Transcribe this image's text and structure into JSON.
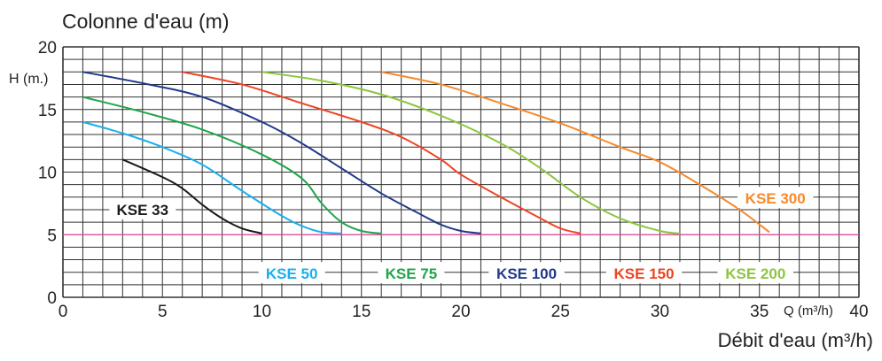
{
  "chart_data": {
    "type": "line",
    "title": "Colonne d'eau (m)",
    "ylabel": "H (m.)",
    "xlabel": "Débit d'eau (m³/h)",
    "xaxis_inline_label": "Q (m³/h)",
    "xlim": [
      0,
      40
    ],
    "ylim": [
      0,
      20
    ],
    "xticks": [
      "0",
      "5",
      "10",
      "15",
      "20",
      "25",
      "30",
      "35",
      "40"
    ],
    "yticks": [
      "0",
      "5",
      "10",
      "15",
      "20"
    ],
    "grid": true,
    "reference_line": {
      "y": 5,
      "color": "#e94fa8"
    },
    "series": [
      {
        "name": "KSE 33",
        "color": "#1a1a1a",
        "label_at": [
          4,
          7
        ],
        "points": [
          [
            3,
            11
          ],
          [
            5,
            9.6
          ],
          [
            6,
            8.7
          ],
          [
            7,
            7.4
          ],
          [
            8,
            6.3
          ],
          [
            9,
            5.5
          ],
          [
            10,
            5.1
          ]
        ]
      },
      {
        "name": "KSE 50",
        "color": "#1ab0ec",
        "label_at": [
          11.5,
          1.9
        ],
        "points": [
          [
            1,
            14
          ],
          [
            3,
            13.1
          ],
          [
            5,
            12
          ],
          [
            7,
            10.6
          ],
          [
            9,
            8.5
          ],
          [
            11,
            6.5
          ],
          [
            12,
            5.7
          ],
          [
            13,
            5.2
          ],
          [
            14,
            5.1
          ]
        ]
      },
      {
        "name": "KSE 75",
        "color": "#1fa64a",
        "label_at": [
          17.5,
          1.9
        ],
        "points": [
          [
            1,
            16
          ],
          [
            4,
            14.8
          ],
          [
            7,
            13.4
          ],
          [
            10,
            11.4
          ],
          [
            12,
            9.5
          ],
          [
            13,
            7.5
          ],
          [
            14,
            6
          ],
          [
            15,
            5.3
          ],
          [
            16,
            5.1
          ]
        ]
      },
      {
        "name": "KSE 100",
        "color": "#1f3b8a",
        "label_at": [
          23.3,
          1.9
        ],
        "points": [
          [
            1,
            18
          ],
          [
            4,
            17.1
          ],
          [
            7,
            16
          ],
          [
            10,
            14
          ],
          [
            12,
            12.3
          ],
          [
            14,
            10.3
          ],
          [
            16,
            8.3
          ],
          [
            18,
            6.6
          ],
          [
            19,
            5.8
          ],
          [
            20,
            5.3
          ],
          [
            21,
            5.1
          ]
        ]
      },
      {
        "name": "KSE 150",
        "color": "#ef4423",
        "label_at": [
          29.2,
          1.9
        ],
        "points": [
          [
            6,
            18
          ],
          [
            9,
            17
          ],
          [
            12,
            15.5
          ],
          [
            15,
            14
          ],
          [
            17,
            12.8
          ],
          [
            19,
            11
          ],
          [
            20,
            9.8
          ],
          [
            22,
            8
          ],
          [
            24,
            6.3
          ],
          [
            25,
            5.5
          ],
          [
            26,
            5.1
          ]
        ]
      },
      {
        "name": "KSE 200",
        "color": "#8cc63f",
        "label_at": [
          34.8,
          1.9
        ],
        "points": [
          [
            10,
            18
          ],
          [
            13,
            17.3
          ],
          [
            16,
            16.2
          ],
          [
            19,
            14.5
          ],
          [
            22,
            12.3
          ],
          [
            24,
            10.3
          ],
          [
            26,
            8
          ],
          [
            28,
            6.3
          ],
          [
            30,
            5.3
          ],
          [
            31,
            5.1
          ]
        ]
      },
      {
        "name": "KSE 300",
        "color": "#f7892b",
        "label_at": [
          35.8,
          7.9
        ],
        "points": [
          [
            16,
            18
          ],
          [
            19,
            17
          ],
          [
            22,
            15.5
          ],
          [
            25,
            13.9
          ],
          [
            28,
            12
          ],
          [
            30,
            10.8
          ],
          [
            32,
            9
          ],
          [
            34,
            7
          ],
          [
            35.5,
            5.2
          ]
        ]
      }
    ]
  }
}
